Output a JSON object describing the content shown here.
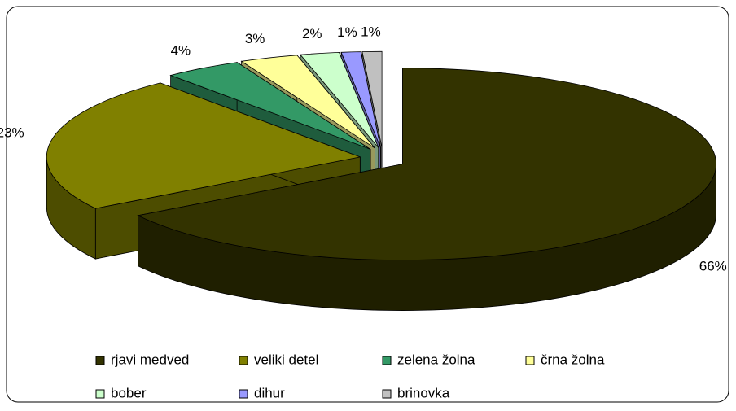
{
  "chart_data": {
    "type": "pie3d",
    "categories": [
      "rjavi medved",
      "veliki detel",
      "zelena žolna",
      "črna žolna",
      "bober",
      "dihur",
      "brinovka"
    ],
    "values": [
      66,
      23,
      4,
      3,
      2,
      1,
      1
    ],
    "value_labels": [
      "66%",
      "23%",
      "4%",
      "3%",
      "2%",
      "1%",
      "1%"
    ],
    "colors": [
      "#333300",
      "#808000",
      "#339966",
      "#ffff99",
      "#ccffcc",
      "#9999ff",
      "#c0c0c0"
    ],
    "legend": "bottom"
  }
}
